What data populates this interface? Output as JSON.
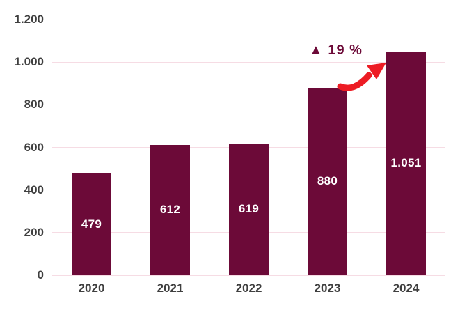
{
  "chart_data": {
    "type": "bar",
    "title": "",
    "xlabel": "",
    "ylabel": "",
    "categories": [
      "2020",
      "2021",
      "2022",
      "2023",
      "2024"
    ],
    "values": [
      479,
      612,
      619,
      880,
      1051
    ],
    "value_labels": [
      "479",
      "612",
      "619",
      "880",
      "1.051"
    ],
    "y_ticks": [
      "0",
      "200",
      "400",
      "600",
      "800",
      "1.000",
      "1.200"
    ],
    "y_tick_values": [
      0,
      200,
      400,
      600,
      800,
      1000,
      1200
    ],
    "ylim": [
      0,
      1200
    ],
    "grid": true,
    "legend": false,
    "annotation": "▲ 19 %",
    "colors": {
      "bar": "#6C0A38",
      "grid": "#F6DCE4",
      "value_label": "#FFFFFF",
      "axis_label": "#3F3F3F",
      "annotation": "#6C0A38",
      "arrow": "#ED1C24",
      "background": "#FFFFFF"
    }
  }
}
